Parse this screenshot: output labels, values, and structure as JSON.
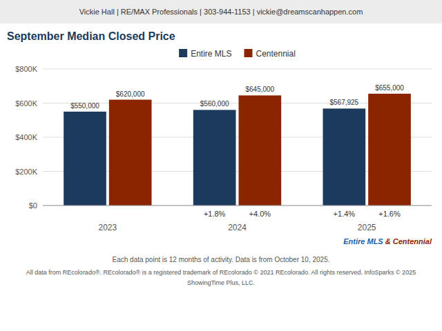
{
  "chart_data": {
    "type": "bar",
    "header": "Vickie Hall | RE/MAX Professionals | 303-944-1153 | vickie@dreamscanhappen.com",
    "title": "September Median Closed Price",
    "subtitle": [
      {
        "text": "Entire MLS",
        "color": "#1b5fa8"
      },
      {
        "text": " & Centennial",
        "color": "#8b2500"
      }
    ],
    "categories": [
      "2023",
      "2024",
      "2025"
    ],
    "series": [
      {
        "name": "Entire MLS",
        "color": "#1b3a5c",
        "values": [
          550000,
          560000,
          567925
        ],
        "value_labels": [
          "$550,000",
          "$560,000",
          "$567,925"
        ]
      },
      {
        "name": "Centennial",
        "color": "#8b2500",
        "values": [
          620000,
          645000,
          655000
        ],
        "value_labels": [
          "$620,000",
          "$645,000",
          "$655,000"
        ]
      }
    ],
    "annotations": [
      {
        "text": "+1.8%",
        "series": "Entire MLS",
        "category": "2024"
      },
      {
        "text": "+1.4%",
        "series": "Entire MLS",
        "category": "2025"
      },
      {
        "text": "+4.0%",
        "series": "Centennial",
        "category": "2024"
      },
      {
        "text": "+1.6%",
        "series": "Centennial",
        "category": "2025"
      }
    ],
    "ylim": [
      0,
      800000
    ],
    "yticks": [
      {
        "value": 0,
        "label": "$0"
      },
      {
        "value": 200000,
        "label": "$200K"
      },
      {
        "value": 400000,
        "label": "$400K"
      },
      {
        "value": 600000,
        "label": "$600K"
      },
      {
        "value": 800000,
        "label": "$800K"
      }
    ],
    "grid": true,
    "legend": "top",
    "data_labels": true,
    "footer": [
      "Each data point is 12 months of activity. Data is from October 10, 2025.",
      "All data from REcolorado®. REcolorado® is a registered trademark of REcolorado © 2021 REcolorado. All rights reserved. InfoSparks © 2025",
      "ShowingTime Plus, LLC."
    ]
  }
}
